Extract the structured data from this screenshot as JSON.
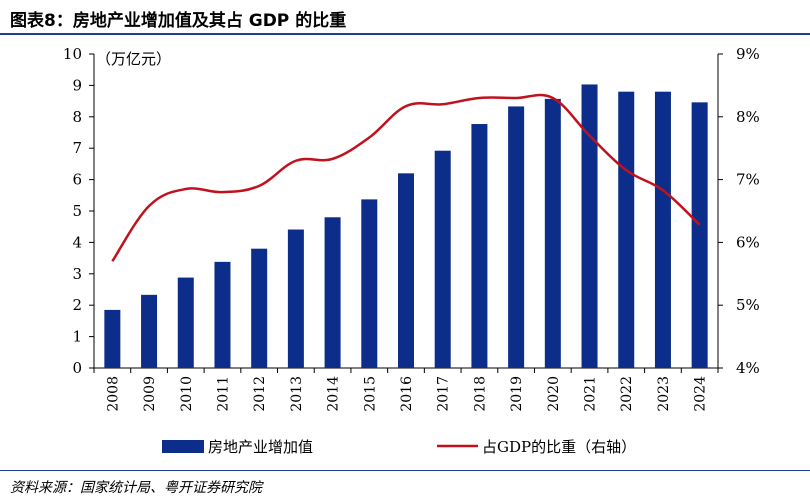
{
  "title": "图表8：房地产业增加值及其占 GDP 的比重",
  "source": "资料来源：国家统计局、粤开证券研究院",
  "colors": {
    "bar": "#0c2e8a",
    "line": "#c0121e",
    "rule": "#1f3f8f"
  },
  "chart_data": {
    "type": "bar+line",
    "categories": [
      "2008",
      "2009",
      "2010",
      "2011",
      "2012",
      "2013",
      "2014",
      "2015",
      "2016",
      "2017",
      "2018",
      "2019",
      "2020",
      "2021",
      "2022",
      "2023",
      "2024"
    ],
    "series": [
      {
        "name": "房地产业增加值",
        "type": "bar",
        "axis": "left",
        "values": [
          1.85,
          2.33,
          2.88,
          3.38,
          3.8,
          4.41,
          4.8,
          5.37,
          6.2,
          6.92,
          7.77,
          8.33,
          8.57,
          9.03,
          8.8,
          8.8,
          8.46
        ]
      },
      {
        "name": "占GDP的比重（右轴）",
        "type": "line",
        "axis": "right",
        "values": [
          5.7,
          6.58,
          6.85,
          6.8,
          6.9,
          7.3,
          7.33,
          7.67,
          8.17,
          8.2,
          8.3,
          8.3,
          8.3,
          7.7,
          7.15,
          6.83,
          6.28
        ]
      }
    ],
    "y_left": {
      "unit_label": "（万亿元）",
      "ylim": [
        0,
        10
      ],
      "ticks": [
        "0",
        "1",
        "2",
        "3",
        "4",
        "5",
        "6",
        "7",
        "8",
        "9",
        "10"
      ]
    },
    "y_right": {
      "ylim": [
        4,
        9
      ],
      "ticks": [
        "4%",
        "5%",
        "6%",
        "7%",
        "8%",
        "9%"
      ]
    },
    "legend_position": "bottom",
    "grid": false
  }
}
